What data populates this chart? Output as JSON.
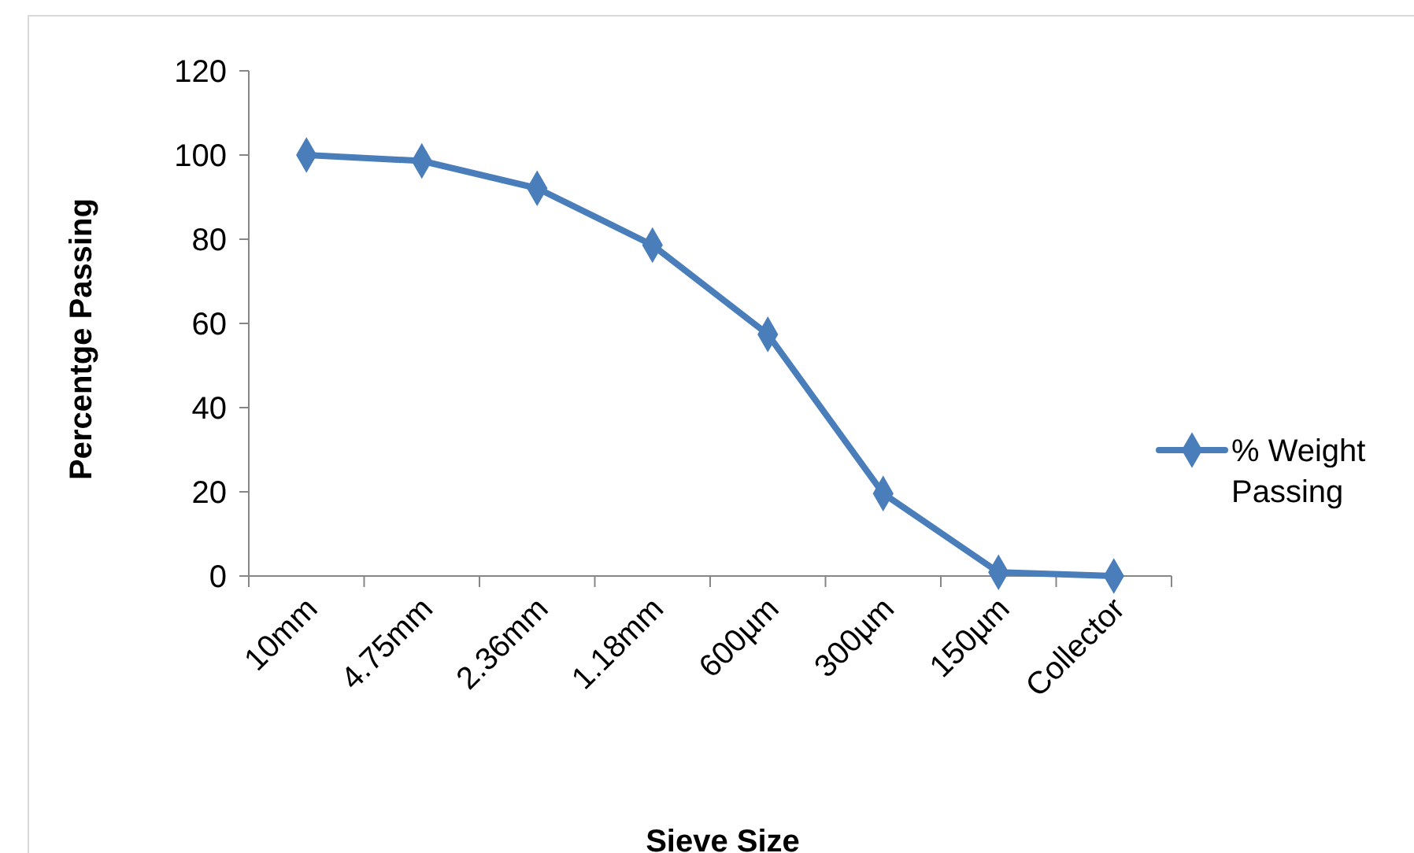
{
  "chart_data": {
    "type": "line",
    "xlabel": "Sieve Size",
    "ylabel": "Percentge Passing",
    "categories": [
      "10mm",
      "4.75mm",
      "2.36mm",
      "1.18mm",
      "600µm",
      "300µm",
      "150µm",
      "Collector"
    ],
    "series": [
      {
        "name": "% Weight Passing",
        "color": "#4a7ebb",
        "values": [
          100,
          98.6,
          92.1,
          78.6,
          57.4,
          19.6,
          0.9,
          0
        ]
      }
    ],
    "ylim": [
      0,
      120
    ],
    "yticks": [
      0,
      20,
      40,
      60,
      80,
      100,
      120
    ],
    "grid": false,
    "legend": "right",
    "marker": "diamond",
    "line_style": "solid"
  }
}
